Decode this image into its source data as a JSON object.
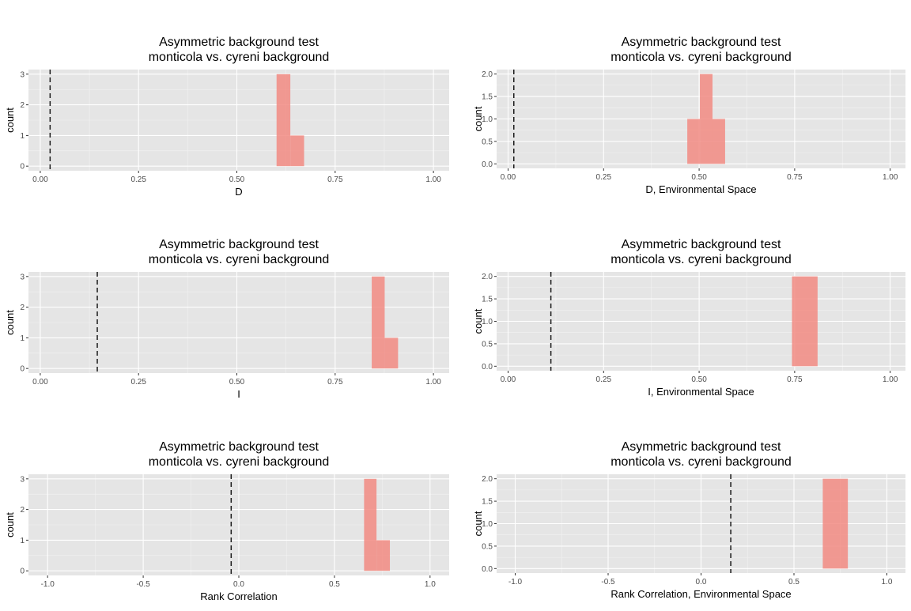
{
  "colors": {
    "panel_bg": "#e5e5e5",
    "grid_major": "#ffffff",
    "grid_minor": "#f2f2f2",
    "bar_fill": "#f28b82",
    "vline": "#1a1a1a",
    "text": "#000000",
    "tick_text": "#4d4d4d"
  },
  "chart_data": [
    {
      "type": "bar",
      "title": "Asymmetric background test",
      "subtitle": "monticola vs. cyreni background",
      "xlabel": "D",
      "ylabel": "count",
      "xlim": [
        -0.03,
        1.04
      ],
      "ylim": [
        -0.15,
        3.15
      ],
      "xticks": [
        0,
        0.25,
        0.5,
        0.75,
        1
      ],
      "xtick_labels": [
        "0.00",
        "0.25",
        "0.50",
        "0.75",
        "1.00"
      ],
      "yticks": [
        0,
        1,
        2,
        3
      ],
      "ytick_labels": [
        "0",
        "1",
        "2",
        "3"
      ],
      "grid": true,
      "bars": [
        {
          "x0": 0.601,
          "x1": 0.636,
          "count": 3
        },
        {
          "x0": 0.636,
          "x1": 0.671,
          "count": 1
        }
      ],
      "observed_line": 0.025
    },
    {
      "type": "bar",
      "title": "Asymmetric background test",
      "subtitle": "monticola vs. cyreni background",
      "xlabel": "D, Environmental Space",
      "ylabel": "count",
      "xlim": [
        -0.03,
        1.04
      ],
      "ylim": [
        -0.1,
        2.1
      ],
      "xticks": [
        0,
        0.25,
        0.5,
        0.75,
        1
      ],
      "xtick_labels": [
        "0.00",
        "0.25",
        "0.50",
        "0.75",
        "1.00"
      ],
      "yticks": [
        0,
        0.5,
        1,
        1.5,
        2
      ],
      "ytick_labels": [
        "0.0",
        "0.5",
        "1.0",
        "1.5",
        "2.0"
      ],
      "grid": true,
      "bars": [
        {
          "x0": 0.469,
          "x1": 0.502,
          "count": 1
        },
        {
          "x0": 0.502,
          "x1": 0.535,
          "count": 2
        },
        {
          "x0": 0.535,
          "x1": 0.568,
          "count": 1
        }
      ],
      "observed_line": 0.015
    },
    {
      "type": "bar",
      "title": "Asymmetric background test",
      "subtitle": "monticola vs. cyreni background",
      "xlabel": "I",
      "ylabel": "count",
      "xlim": [
        -0.03,
        1.04
      ],
      "ylim": [
        -0.15,
        3.15
      ],
      "xticks": [
        0,
        0.25,
        0.5,
        0.75,
        1
      ],
      "xtick_labels": [
        "0.00",
        "0.25",
        "0.50",
        "0.75",
        "1.00"
      ],
      "yticks": [
        0,
        1,
        2,
        3
      ],
      "ytick_labels": [
        "0",
        "1",
        "2",
        "3"
      ],
      "grid": true,
      "bars": [
        {
          "x0": 0.843,
          "x1": 0.876,
          "count": 3
        },
        {
          "x0": 0.876,
          "x1": 0.91,
          "count": 1
        }
      ],
      "observed_line": 0.145
    },
    {
      "type": "bar",
      "title": "Asymmetric background test",
      "subtitle": "monticola vs. cyreni background",
      "xlabel": "I, Environmental Space",
      "ylabel": "count",
      "xlim": [
        -0.03,
        1.04
      ],
      "ylim": [
        -0.1,
        2.1
      ],
      "xticks": [
        0,
        0.25,
        0.5,
        0.75,
        1
      ],
      "xtick_labels": [
        "0.00",
        "0.25",
        "0.50",
        "0.75",
        "1.00"
      ],
      "yticks": [
        0,
        0.5,
        1,
        1.5,
        2
      ],
      "ytick_labels": [
        "0.0",
        "0.5",
        "1.0",
        "1.5",
        "2.0"
      ],
      "grid": true,
      "bars": [
        {
          "x0": 0.743,
          "x1": 0.81,
          "count": 2
        }
      ],
      "observed_line": 0.112
    },
    {
      "type": "bar",
      "title": "Asymmetric background test",
      "subtitle": "monticola vs. cyreni background",
      "xlabel": "Rank Correlation",
      "ylabel": "count",
      "xlim": [
        -1.1,
        1.1
      ],
      "ylim": [
        -0.15,
        3.15
      ],
      "xticks": [
        -1,
        -0.5,
        0,
        0.5,
        1
      ],
      "xtick_labels": [
        "-1.0",
        "-0.5",
        "0.0",
        "0.5",
        "1.0"
      ],
      "yticks": [
        0,
        1,
        2,
        3
      ],
      "ytick_labels": [
        "0",
        "1",
        "2",
        "3"
      ],
      "grid": true,
      "bars": [
        {
          "x0": 0.655,
          "x1": 0.72,
          "count": 3
        },
        {
          "x0": 0.72,
          "x1": 0.79,
          "count": 1
        }
      ],
      "observed_line": -0.04
    },
    {
      "type": "bar",
      "title": "Asymmetric background test",
      "subtitle": "monticola vs. cyreni background",
      "xlabel": "Rank Correlation, Environmental Space",
      "ylabel": "count",
      "xlim": [
        -1.1,
        1.1
      ],
      "ylim": [
        -0.1,
        2.1
      ],
      "xticks": [
        -1,
        -0.5,
        0,
        0.5,
        1
      ],
      "xtick_labels": [
        "-1.0",
        "-0.5",
        "0.0",
        "0.5",
        "1.0"
      ],
      "yticks": [
        0,
        0.5,
        1,
        1.5,
        2
      ],
      "ytick_labels": [
        "0.0",
        "0.5",
        "1.0",
        "1.5",
        "2.0"
      ],
      "grid": true,
      "bars": [
        {
          "x0": 0.655,
          "x1": 0.79,
          "count": 2
        }
      ],
      "observed_line": 0.16
    }
  ]
}
